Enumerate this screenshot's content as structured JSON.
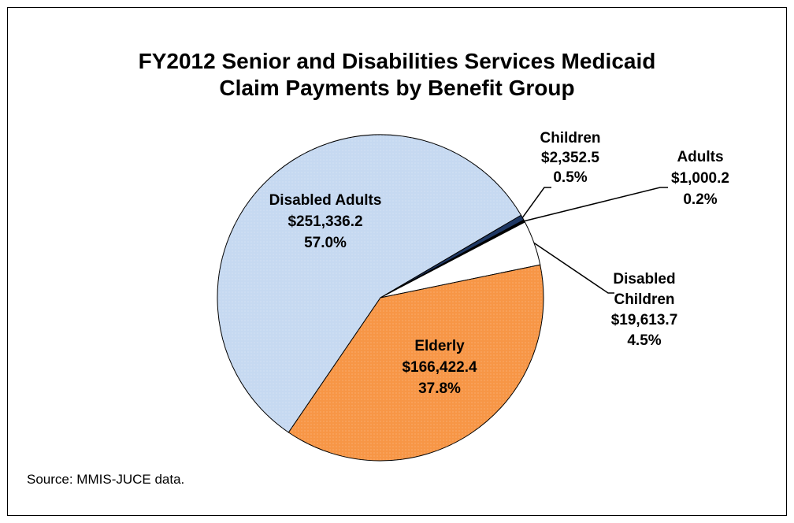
{
  "chart_data": {
    "type": "pie",
    "title": "FY2012 Senior and Disabilities  Services Medicaid",
    "subtitle": "Claim Payments by Benefit Group",
    "source": "Source: MMIS-JUCE data.",
    "slices": [
      {
        "name": "Disabled Adults",
        "value": "$251,336.2",
        "percent": "57.0%",
        "amount": 251336.2,
        "color": "#c6d9f1"
      },
      {
        "name": "Children",
        "value": "$2,352.5",
        "percent": "0.5%",
        "amount": 2352.5,
        "color": "#1f3864"
      },
      {
        "name": "Adults",
        "value": "$1,000.2",
        "percent": "0.2%",
        "amount": 1000.2,
        "color": "#000000"
      },
      {
        "name": "Disabled Children",
        "name_line1": "Disabled",
        "name_line2": "Children",
        "value": "$19,613.7",
        "percent": "4.5%",
        "amount": 19613.7,
        "color": "#ffffff"
      },
      {
        "name": "Elderly",
        "value": "$166,422.4",
        "percent": "37.8%",
        "amount": 166422.4,
        "color": "#f79646"
      }
    ]
  }
}
